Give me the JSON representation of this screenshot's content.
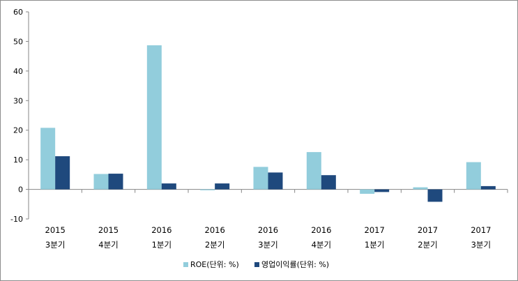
{
  "chart_data": {
    "type": "bar",
    "categories": [
      {
        "year": "2015",
        "quarter": "3분기"
      },
      {
        "year": "2015",
        "quarter": "4분기"
      },
      {
        "year": "2016",
        "quarter": "1분기"
      },
      {
        "year": "2016",
        "quarter": "2분기"
      },
      {
        "year": "2016",
        "quarter": "3분기"
      },
      {
        "year": "2016",
        "quarter": "4분기"
      },
      {
        "year": "2017",
        "quarter": "1분기"
      },
      {
        "year": "2017",
        "quarter": "2분기"
      },
      {
        "year": "2017",
        "quarter": "3분기"
      }
    ],
    "series": [
      {
        "name": "ROE(단위: %)",
        "color": "#92cddc",
        "values": [
          20.8,
          5.2,
          48.7,
          -0.3,
          7.6,
          12.6,
          -1.5,
          0.7,
          9.2
        ]
      },
      {
        "name": "영업이익률(단위: %)",
        "color": "#1f497d",
        "values": [
          11.2,
          5.3,
          2.0,
          2.0,
          5.7,
          4.8,
          -0.9,
          -4.2,
          1.1
        ]
      }
    ],
    "ylim": [
      -10,
      60
    ],
    "yticks": [
      -10,
      0,
      10,
      20,
      30,
      40,
      50,
      60
    ],
    "grid": false,
    "legend_position": "bottom-center"
  }
}
